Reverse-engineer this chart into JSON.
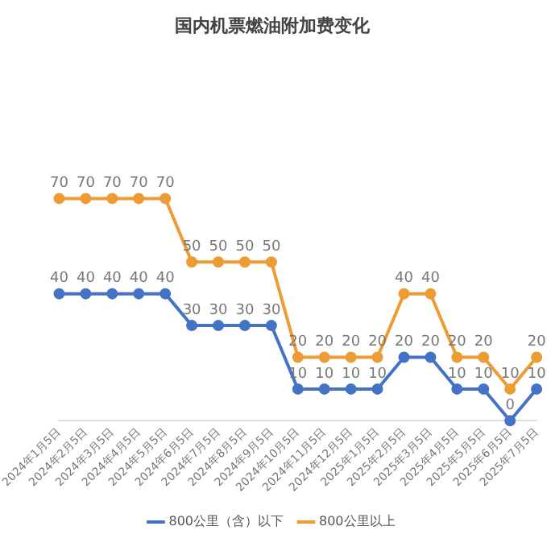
{
  "chart_data": {
    "type": "line",
    "title": "国内机票燃油附加费变化",
    "categories": [
      "2024年1月5日",
      "2024年2月5日",
      "2024年3月5日",
      "2024年4月5日",
      "2024年5月5日",
      "2024年6月5日",
      "2024年7月5日",
      "2024年8月5日",
      "2024年9月5日",
      "2024年10月5日",
      "2024年11月5日",
      "2024年12月5日",
      "2025年1月5日",
      "2025年2月5日",
      "2025年3月5日",
      "2025年4月5日",
      "2025年5月5日",
      "2025年6月5日",
      "2025年7月5日"
    ],
    "series": [
      {
        "name": "800公里（含）以下",
        "color": "#4472c4",
        "values": [
          40,
          40,
          40,
          40,
          40,
          30,
          30,
          30,
          30,
          10,
          10,
          10,
          10,
          20,
          20,
          10,
          10,
          0,
          10
        ]
      },
      {
        "name": "800公里以上",
        "color": "#ed9b33",
        "values": [
          70,
          70,
          70,
          70,
          70,
          50,
          50,
          50,
          50,
          20,
          20,
          20,
          20,
          40,
          40,
          20,
          20,
          10,
          20
        ]
      }
    ],
    "data_labels": true,
    "legend": "bottom",
    "marker": "circle",
    "grid": false,
    "tick_labels": "x"
  }
}
